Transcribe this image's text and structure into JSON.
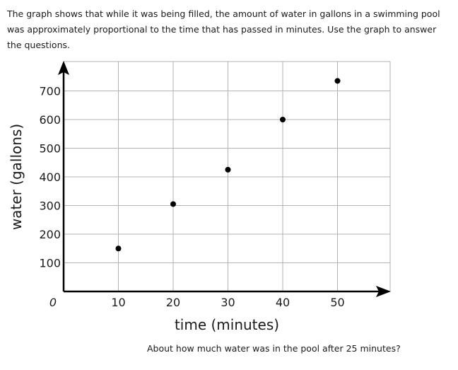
{
  "intro_text": "The graph shows that while it was being filled, the amount of water in gallons in a swimming pool was approximately proportional to the time that has passed in minutes. Use the graph to answer the questions.",
  "question_text": "About how much water was in the pool after 25 minutes?",
  "chart_data": {
    "type": "scatter",
    "title": "",
    "xlabel": "time (minutes)",
    "ylabel": "water (gallons)",
    "origin_label": "0",
    "x": [
      10,
      20,
      30,
      40,
      50
    ],
    "y": [
      150,
      305,
      425,
      600,
      735
    ],
    "xlim": [
      0,
      60
    ],
    "ylim": [
      0,
      800
    ],
    "xticks": [
      10,
      20,
      30,
      40,
      50
    ],
    "yticks": [
      100,
      200,
      300,
      400,
      500,
      600,
      700
    ],
    "grid": true,
    "marker_color": "#000000",
    "grid_color": "#b3b3b3"
  }
}
